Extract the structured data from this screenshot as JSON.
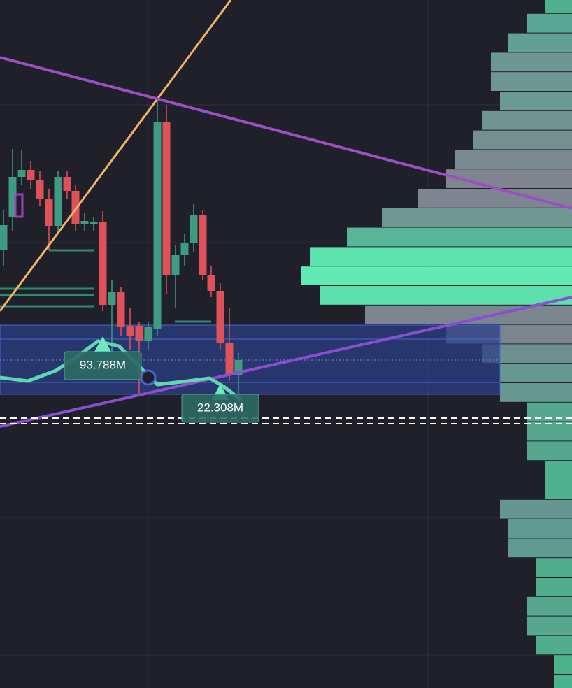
{
  "labels": [
    "93.788M",
    "22.308M"
  ]
}
